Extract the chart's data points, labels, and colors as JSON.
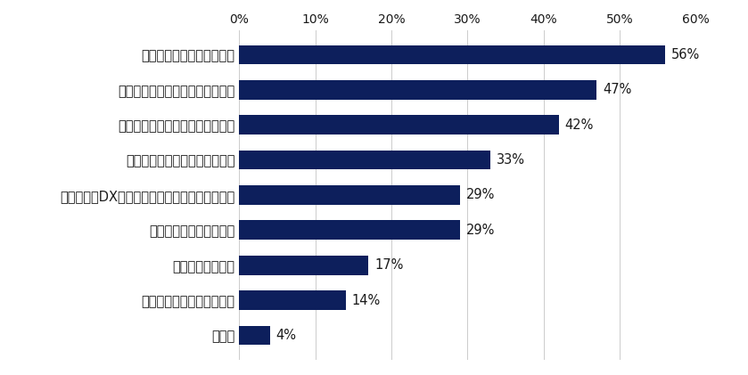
{
  "categories": [
    "その他",
    "業界の競争が激化したため",
    "昇格・出世のため",
    "給与・年収を増やすため",
    "コロナ祀・DXなど、自社の変化に対応するため",
    "専門知識・資格を取得するため",
    "将来の起業・副業・転職等のため",
    "キャリアの市場価値を高めるため",
    "新しい仕事に挑戦するため"
  ],
  "values": [
    4,
    14,
    17,
    29,
    29,
    33,
    42,
    47,
    56
  ],
  "bar_color": "#0d1f5c",
  "label_color": "#1a1a1a",
  "background_color": "#ffffff",
  "xlim": [
    0,
    60
  ],
  "xticks": [
    0,
    10,
    20,
    30,
    40,
    50,
    60
  ],
  "xtick_labels": [
    "0%",
    "10%",
    "20%",
    "30%",
    "40%",
    "50%",
    "60%"
  ],
  "bar_height": 0.55,
  "tick_fontsize": 10,
  "label_fontsize": 10.5,
  "value_fontsize": 10.5
}
